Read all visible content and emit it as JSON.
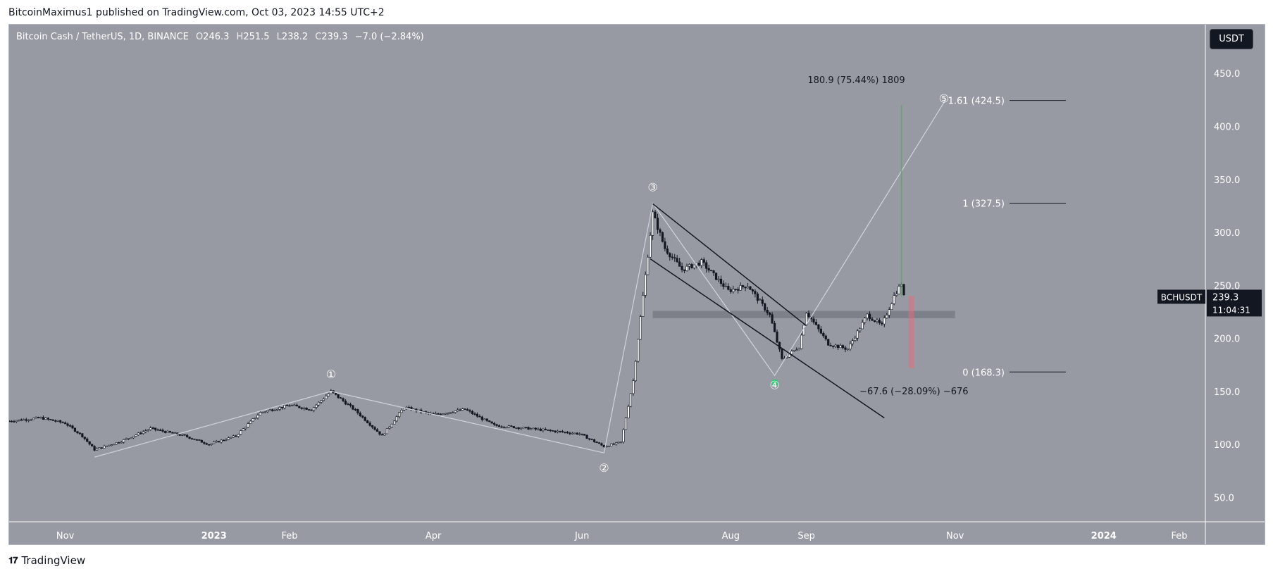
{
  "publisher": "BitcoinMaximus1 published on TradingView.com, Oct 03, 2023 14:55 UTC+2",
  "brand": "TradingView",
  "legend": {
    "symbol": "Bitcoin Cash / TetherUS, 1D, BINANCE",
    "o_label": "O",
    "o": "246.3",
    "h_label": "H",
    "h": "251.5",
    "l_label": "L",
    "l": "238.2",
    "c_label": "C",
    "c": "239.3",
    "change": "−7.0 (−2.84%)"
  },
  "currency": "USDT",
  "price_badge": {
    "ticker": "BCHUSDT",
    "price": "239.3",
    "countdown": "11:04:31"
  },
  "colors": {
    "background": "#979aa2",
    "candles": "#131722",
    "green": "#4caf50",
    "red": "#f06873",
    "wave_line": "#d1d4dc"
  },
  "chart_data": {
    "type": "candlestick",
    "y_axis": {
      "ticks": [
        50.0,
        100.0,
        150.0,
        200.0,
        250.0,
        300.0,
        350.0,
        400.0,
        450.0
      ],
      "labels": [
        "50.0",
        "100.0",
        "150.0",
        "200.0",
        "250.0",
        "300.0",
        "350.0",
        "400.0",
        "450.0"
      ],
      "range": [
        27,
        496
      ]
    },
    "x_axis": {
      "labels": [
        "Nov",
        "2023",
        "Feb",
        "Apr",
        "Jun",
        "Aug",
        "Sep",
        "Nov",
        "2024",
        "Feb"
      ],
      "bold": [
        "2023",
        "2024"
      ],
      "x": [
        "2022-11-01",
        "2023-01-01",
        "2023-02-01",
        "2023-04-01",
        "2023-06-01",
        "2023-08-01",
        "2023-09-01",
        "2023-11-01",
        "2024-01-01",
        "2024-02-01"
      ]
    },
    "price_path": [
      {
        "x": "2022-10-09",
        "y": 122
      },
      {
        "x": "2022-10-22",
        "y": 125
      },
      {
        "x": "2022-11-01",
        "y": 120
      },
      {
        "x": "2022-11-08",
        "y": 108
      },
      {
        "x": "2022-11-13",
        "y": 95
      },
      {
        "x": "2022-11-24",
        "y": 103
      },
      {
        "x": "2022-12-06",
        "y": 115
      },
      {
        "x": "2022-12-20",
        "y": 108
      },
      {
        "x": "2022-12-30",
        "y": 100
      },
      {
        "x": "2023-01-10",
        "y": 108
      },
      {
        "x": "2023-01-20",
        "y": 130
      },
      {
        "x": "2023-02-01",
        "y": 137
      },
      {
        "x": "2023-02-10",
        "y": 133
      },
      {
        "x": "2023-02-18",
        "y": 150
      },
      {
        "x": "2023-02-28",
        "y": 132
      },
      {
        "x": "2023-03-11",
        "y": 108
      },
      {
        "x": "2023-03-20",
        "y": 135
      },
      {
        "x": "2023-04-01",
        "y": 128
      },
      {
        "x": "2023-04-14",
        "y": 133
      },
      {
        "x": "2023-04-26",
        "y": 118
      },
      {
        "x": "2023-05-10",
        "y": 115
      },
      {
        "x": "2023-05-31",
        "y": 110
      },
      {
        "x": "2023-06-10",
        "y": 98
      },
      {
        "x": "2023-06-17",
        "y": 102
      },
      {
        "x": "2023-06-22",
        "y": 160
      },
      {
        "x": "2023-06-26",
        "y": 240
      },
      {
        "x": "2023-06-30",
        "y": 318
      },
      {
        "x": "2023-07-05",
        "y": 285
      },
      {
        "x": "2023-07-12",
        "y": 265
      },
      {
        "x": "2023-07-20",
        "y": 272
      },
      {
        "x": "2023-07-31",
        "y": 245
      },
      {
        "x": "2023-08-08",
        "y": 250
      },
      {
        "x": "2023-08-17",
        "y": 222
      },
      {
        "x": "2023-08-22",
        "y": 180
      },
      {
        "x": "2023-08-29",
        "y": 192
      },
      {
        "x": "2023-09-01",
        "y": 225
      },
      {
        "x": "2023-09-10",
        "y": 195
      },
      {
        "x": "2023-09-18",
        "y": 190
      },
      {
        "x": "2023-09-26",
        "y": 222
      },
      {
        "x": "2023-10-02",
        "y": 212
      },
      {
        "x": "2023-10-07",
        "y": 240
      },
      {
        "x": "2023-10-10",
        "y": 252
      },
      {
        "x": "2023-10-11",
        "y": 239.3
      }
    ],
    "wave_points": [
      {
        "label": "①",
        "x": "2023-02-18",
        "y": 150
      },
      {
        "label": "②",
        "x": "2023-06-10",
        "y": 92
      },
      {
        "label": "③",
        "x": "2023-06-30",
        "y": 327.5
      },
      {
        "label": "④",
        "x": "2023-08-19",
        "y": 165
      },
      {
        "label": "⑤",
        "x": "2023-10-28",
        "y": 424.5
      }
    ],
    "wave_start": {
      "x": "2022-11-13",
      "y": 88
    },
    "channel": {
      "upper": [
        {
          "x": "2023-06-30",
          "y": 327
        },
        {
          "x": "2023-09-01",
          "y": 212
        }
      ],
      "lower": [
        {
          "x": "2023-06-29",
          "y": 275
        },
        {
          "x": "2023-10-03",
          "y": 125
        }
      ]
    },
    "fib_levels": [
      {
        "label": "1.61 (424.5)",
        "value": 424.5
      },
      {
        "label": "1 (327.5)",
        "value": 327.5
      },
      {
        "label": "0 (168.3)",
        "value": 168.3
      }
    ],
    "horizontal_zone": {
      "from_x": "2023-06-30",
      "to_x": "2023-11-01",
      "y_low": 219,
      "y_high": 226
    },
    "long_position": {
      "x": "2023-10-10",
      "entry": 239.3,
      "target": 420,
      "label": "180.9 (75.44%) 1809"
    },
    "short_position": {
      "x": "2023-10-14",
      "top": 240,
      "bottom": 172,
      "label": "−67.6 (−28.09%) −676"
    },
    "low_marker": {
      "x": "2023-08-19",
      "y": 158
    }
  }
}
